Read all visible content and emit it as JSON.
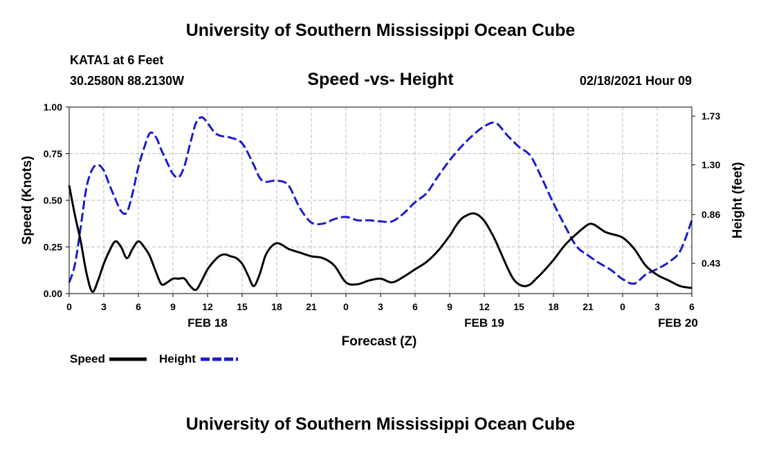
{
  "page": {
    "banner_top": "University of Southern Mississippi Ocean Cube",
    "banner_bottom": "University of Southern Mississippi Ocean Cube",
    "station": "KATA1 at 6 Feet",
    "coords": "30.2580N 88.2130W",
    "valid_time": "02/18/2021 Hour 09"
  },
  "colors": {
    "speed": "#000000",
    "height": "#1a1ad0",
    "grid": "#bbbbbb"
  },
  "chart_data": {
    "type": "line",
    "title": "Speed -vs- Height",
    "xlabel": "Forecast (Z)",
    "ylabel": "Speed (Knots)",
    "y2label": "Height (feet)",
    "xlim": [
      0,
      54
    ],
    "ylim": [
      0,
      1
    ],
    "y2lim": [
      0.1622,
      1.8104
    ],
    "x_ticks": [
      0,
      3,
      6,
      9,
      12,
      15,
      18,
      21,
      24,
      27,
      30,
      33,
      36,
      39,
      42,
      45,
      48,
      51,
      54
    ],
    "x_tick_labels": [
      "0",
      "3",
      "6",
      "9",
      "12",
      "15",
      "18",
      "21",
      "0",
      "3",
      "6",
      "9",
      "12",
      "15",
      "18",
      "21",
      "0",
      "3",
      "6"
    ],
    "date_labels": [
      {
        "x": 12,
        "label": "FEB 18"
      },
      {
        "x": 36,
        "label": "FEB 19"
      },
      {
        "x": 52.8,
        "label": "FEB 20"
      }
    ],
    "y_ticks": [
      0,
      0.25,
      0.5,
      0.75,
      1.0
    ],
    "y_tick_labels": [
      "0.00",
      "0.25",
      "0.50",
      "0.75",
      "1.00"
    ],
    "y2_ticks": [
      0.43,
      0.86,
      1.3,
      1.73
    ],
    "y2_tick_labels": [
      "0.43",
      "0.86",
      "1.30",
      "1.73"
    ],
    "grid": true,
    "legend": {
      "position": "bottom-left",
      "items": [
        "Speed",
        "Height"
      ]
    },
    "series": [
      {
        "name": "Speed",
        "axis": "left",
        "style": "solid",
        "x": [
          0,
          0.5,
          1,
          1.5,
          2,
          2.5,
          3,
          3.5,
          4,
          4.5,
          5,
          5.5,
          6,
          6.5,
          7,
          7.5,
          8,
          8.5,
          9,
          9.5,
          10,
          10.5,
          11,
          11.5,
          12,
          12.5,
          13,
          13.5,
          14,
          14.5,
          15,
          15.5,
          16,
          16.5,
          17,
          17.5,
          18,
          18.5,
          19,
          20,
          21,
          22,
          23,
          24,
          25,
          26,
          27,
          28,
          29,
          30,
          31,
          32,
          33,
          33.5,
          34,
          34.5,
          35,
          35.5,
          36,
          36.5,
          37,
          37.5,
          38,
          38.5,
          39,
          39.5,
          40,
          40.5,
          41,
          42,
          43,
          44,
          45,
          45.5,
          46,
          46.5,
          47,
          48,
          49,
          50,
          51,
          52,
          53,
          54
        ],
        "values": [
          0.58,
          0.42,
          0.28,
          0.11,
          0.01,
          0.07,
          0.16,
          0.23,
          0.28,
          0.25,
          0.19,
          0.24,
          0.28,
          0.25,
          0.2,
          0.12,
          0.05,
          0.06,
          0.08,
          0.08,
          0.08,
          0.04,
          0.02,
          0.07,
          0.13,
          0.17,
          0.2,
          0.21,
          0.2,
          0.19,
          0.16,
          0.1,
          0.04,
          0.1,
          0.2,
          0.25,
          0.27,
          0.26,
          0.24,
          0.22,
          0.2,
          0.19,
          0.15,
          0.06,
          0.05,
          0.07,
          0.08,
          0.06,
          0.09,
          0.13,
          0.17,
          0.23,
          0.31,
          0.36,
          0.4,
          0.42,
          0.43,
          0.42,
          0.39,
          0.34,
          0.28,
          0.21,
          0.14,
          0.08,
          0.05,
          0.04,
          0.05,
          0.08,
          0.11,
          0.18,
          0.26,
          0.32,
          0.37,
          0.37,
          0.35,
          0.33,
          0.32,
          0.3,
          0.24,
          0.15,
          0.1,
          0.07,
          0.04,
          0.03
        ]
      },
      {
        "name": "Height",
        "axis": "right",
        "style": "dashed",
        "x": [
          0,
          0.5,
          1,
          1.5,
          2,
          2.5,
          3,
          3.5,
          4,
          4.5,
          5,
          5.5,
          6,
          6.5,
          7,
          7.5,
          8,
          8.5,
          9,
          9.5,
          10,
          10.5,
          11,
          11.5,
          12,
          12.5,
          13,
          14,
          15,
          16,
          16.5,
          17,
          18,
          19,
          20,
          21,
          22,
          23,
          24,
          25,
          26,
          27,
          28,
          29,
          30,
          31,
          32,
          33,
          34,
          35,
          36,
          37,
          38,
          39,
          40,
          41,
          42,
          43,
          44,
          45,
          46,
          47,
          48,
          49,
          50,
          51,
          52,
          53,
          54
        ],
        "values": [
          0.26,
          0.42,
          0.75,
          1.1,
          1.26,
          1.3,
          1.25,
          1.12,
          1.0,
          0.89,
          0.88,
          1.05,
          1.28,
          1.45,
          1.58,
          1.55,
          1.43,
          1.32,
          1.22,
          1.19,
          1.29,
          1.49,
          1.67,
          1.72,
          1.67,
          1.6,
          1.56,
          1.54,
          1.49,
          1.3,
          1.19,
          1.15,
          1.16,
          1.12,
          0.92,
          0.79,
          0.78,
          0.82,
          0.84,
          0.81,
          0.81,
          0.8,
          0.8,
          0.87,
          0.97,
          1.05,
          1.2,
          1.34,
          1.46,
          1.56,
          1.64,
          1.67,
          1.56,
          1.46,
          1.38,
          1.18,
          0.96,
          0.76,
          0.58,
          0.5,
          0.43,
          0.37,
          0.29,
          0.25,
          0.33,
          0.38,
          0.44,
          0.54,
          0.81
        ]
      }
    ]
  }
}
